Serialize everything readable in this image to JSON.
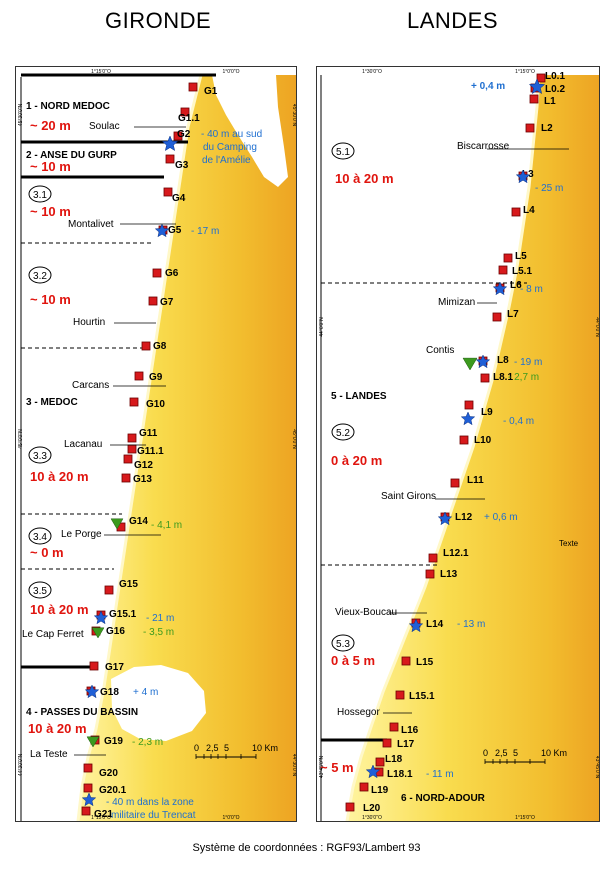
{
  "titles": {
    "gironde": "GIRONDE",
    "landes": "LANDES"
  },
  "footer": "Système de coordonnées : RGF93/Lambert 93",
  "scale": {
    "ticks": [
      "0",
      "2,5",
      "5",
      "10 Km"
    ]
  },
  "gironde": {
    "graticule": {
      "top": [
        "1°15'0\"O",
        "1°0'0\"O"
      ],
      "bottom": [
        "1°15'0\"O",
        "1°0'0\"O"
      ],
      "left": [
        "45°30'0\"N",
        "45°0'0\"N",
        "44°30'0\"N"
      ],
      "right": [
        "45°30'0\"N",
        "45°0'0\"N",
        "44°30'0\"N"
      ]
    },
    "sectors": [
      {
        "id": "",
        "name": "1 - NORD MEDOC",
        "range": "~ 20 m"
      },
      {
        "id": "",
        "name": "2 - ANSE DU GURP",
        "range": "~ 10 m"
      },
      {
        "id": "3.1",
        "name": "",
        "range": "~ 10 m"
      },
      {
        "id": "3.2",
        "name": "",
        "range": "~ 10 m"
      },
      {
        "id": "",
        "name": "3 - MEDOC",
        "range": ""
      },
      {
        "id": "3.3",
        "name": "",
        "range": "10 à 20 m"
      },
      {
        "id": "3.4",
        "name": "",
        "range": "~ 0 m"
      },
      {
        "id": "3.5",
        "name": "",
        "range": "10 à 20 m"
      },
      {
        "id": "",
        "name": "4 - PASSES DU BASSIN",
        "range": "10 à 20 m"
      }
    ],
    "places": [
      "Soulac",
      "Montalivet",
      "Hourtin",
      "Carcans",
      "Lacanau",
      "Le Porge",
      "Le Cap Ferret",
      "La Teste"
    ],
    "stations": [
      "G1",
      "G1.1",
      "G2",
      "G3",
      "G4",
      "G5",
      "G6",
      "G7",
      "G8",
      "G9",
      "G10",
      "G11",
      "G11.1",
      "G12",
      "G13",
      "G14",
      "G15",
      "G15.1",
      "G16",
      "G17",
      "G18",
      "G19",
      "G20",
      "G20.1",
      "G21"
    ],
    "notes": [
      {
        "text": "- 40 m au sud",
        "kind": "star"
      },
      {
        "text": "du Camping",
        "kind": "star"
      },
      {
        "text": "de l'Amélie",
        "kind": "star"
      },
      {
        "text": "- 17 m",
        "kind": "star"
      },
      {
        "text": "- 4,1 m",
        "kind": "triangle"
      },
      {
        "text": "- 21 m",
        "kind": "star"
      },
      {
        "text": "- 3,5 m",
        "kind": "triangle"
      },
      {
        "text": "+ 4 m",
        "kind": "star"
      },
      {
        "text": "- 2,3 m",
        "kind": "triangle"
      },
      {
        "text": "- 40 m dans la zone",
        "kind": "star"
      },
      {
        "text": "militaire du Trencat",
        "kind": "star"
      }
    ]
  },
  "landes": {
    "graticule": {
      "top": [
        "1°30'0\"O",
        "1°15'0\"O"
      ],
      "bottom": [
        "1°30'0\"O",
        "1°15'0\"O"
      ],
      "left": [
        "44°0'0\"N",
        "43°45'0\"N"
      ],
      "right": [
        "44°0'0\"N",
        "43°45'0\"N"
      ]
    },
    "sectors": [
      {
        "id": "5.1",
        "name": "",
        "range": "10 à 20 m"
      },
      {
        "id": "",
        "name": "5 - LANDES",
        "range": ""
      },
      {
        "id": "5.2",
        "name": "",
        "range": "0 à 20 m"
      },
      {
        "id": "5.3",
        "name": "",
        "range": "0 à 5 m"
      },
      {
        "id": "",
        "name": "6 - NORD-ADOUR",
        "range": "~ 5 m"
      }
    ],
    "places": [
      "Biscarrosse",
      "Mimizan",
      "Contis",
      "Saint Girons",
      "Vieux-Boucau",
      "Hossegor",
      "Texte"
    ],
    "stations": [
      "L0.1",
      "L0.2",
      "L1",
      "L2",
      "L3",
      "L4",
      "L5",
      "L5.1",
      "L6",
      "L7",
      "L8",
      "L8.1",
      "L9",
      "L10",
      "L11",
      "L12",
      "L12.1",
      "L13",
      "L14",
      "L15",
      "L15.1",
      "L16",
      "L17",
      "L18",
      "L18.1",
      "L19",
      "L20"
    ],
    "notes": [
      {
        "text": "+ 0,4 m",
        "kind": "star"
      },
      {
        "text": "- 25 m",
        "kind": "star"
      },
      {
        "text": "- 8 m",
        "kind": "star"
      },
      {
        "text": "- 19 m",
        "kind": "star"
      },
      {
        "text": "- 2,7 m",
        "kind": "triangle"
      },
      {
        "text": "- 0,4 m",
        "kind": "star"
      },
      {
        "text": "+ 0,6 m",
        "kind": "star"
      },
      {
        "text": "- 13 m",
        "kind": "star"
      },
      {
        "text": "- 11 m",
        "kind": "star"
      }
    ]
  },
  "colors": {
    "land_light": "#fff7b0",
    "land_mid": "#f9d84a",
    "land_dark": "#e9a11c",
    "sea": "#ffffff",
    "station": "#d7191c",
    "star": "#1f5fd6",
    "triangle": "#3c9a1e",
    "star_text": "#1f6fd0",
    "triangle_text": "#3c9a1e",
    "range_text": "#e0140e"
  },
  "icons": {
    "station": "station-square-icon",
    "erosion": "star-icon",
    "accretion": "triangle-icon"
  }
}
